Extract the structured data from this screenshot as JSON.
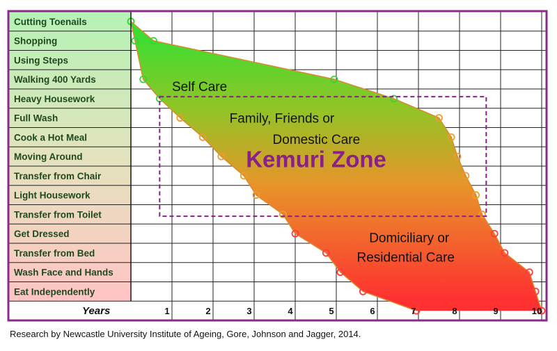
{
  "chart_data": {
    "type": "area",
    "categories": [
      "Cutting Toenails",
      "Shopping",
      "Using Steps",
      "Walking 400 Yards",
      "Heavy Housework",
      "Full Wash",
      "Cook a Hot Meal",
      "Moving Around",
      "Transfer from Chair",
      "Light Housework",
      "Transfer from Toilet",
      "Get Dressed",
      "Transfer from Bed",
      "Wash Face and Hands",
      "Eat Independently"
    ],
    "xlabel": "Years",
    "x_ticks": [
      "1",
      "2",
      "3",
      "4",
      "5",
      "6",
      "7",
      "8",
      "9",
      "10"
    ],
    "xlim": [
      0,
      10.15
    ],
    "grid": true,
    "series": [
      {
        "role": "early boundary",
        "points": [
          {
            "x": 0.0,
            "y": 0.5
          },
          {
            "x": 0.1,
            "y": 1.5
          },
          {
            "x": 0.3,
            "y": 3.5
          },
          {
            "x": 0.7,
            "y": 4.5
          },
          {
            "x": 1.2,
            "y": 5.5
          },
          {
            "x": 1.75,
            "y": 6.5
          },
          {
            "x": 2.2,
            "y": 7.5
          },
          {
            "x": 2.75,
            "y": 8.5
          },
          {
            "x": 3.05,
            "y": 9.5
          },
          {
            "x": 3.7,
            "y": 10.5
          },
          {
            "x": 4.0,
            "y": 11.5
          },
          {
            "x": 4.75,
            "y": 12.5
          },
          {
            "x": 5.1,
            "y": 13.5
          },
          {
            "x": 5.65,
            "y": 14.5
          },
          {
            "x": 6.95,
            "y": 15.5
          }
        ]
      },
      {
        "role": "late boundary",
        "points": [
          {
            "x": 0.0,
            "y": 0.5
          },
          {
            "x": 0.55,
            "y": 1.5
          },
          {
            "x": 4.95,
            "y": 3.5
          },
          {
            "x": 6.4,
            "y": 4.5
          },
          {
            "x": 7.5,
            "y": 5.5
          },
          {
            "x": 7.8,
            "y": 6.5
          },
          {
            "x": 7.95,
            "y": 7.5
          },
          {
            "x": 8.15,
            "y": 8.5
          },
          {
            "x": 8.4,
            "y": 9.5
          },
          {
            "x": 8.55,
            "y": 10.5
          },
          {
            "x": 8.85,
            "y": 11.5
          },
          {
            "x": 9.1,
            "y": 12.5
          },
          {
            "x": 9.7,
            "y": 13.5
          },
          {
            "x": 9.85,
            "y": 14.5
          },
          {
            "x": 10.0,
            "y": 15.5
          }
        ]
      }
    ],
    "annotations": [
      {
        "text": "Self Care",
        "x": 1.0,
        "y": 4.1
      },
      {
        "text": "Family, Friends or",
        "x": 2.4,
        "y": 5.75
      },
      {
        "text": "Domestic Care",
        "x": 3.45,
        "y": 6.85
      },
      {
        "text": "Kemuri Zone",
        "x": 2.8,
        "y": 8.05
      },
      {
        "text": "Domiciliary or",
        "x": 5.8,
        "y": 11.95
      },
      {
        "text": "Residential Care",
        "x": 5.5,
        "y": 12.95
      }
    ],
    "kemuri_zone": {
      "x_range": [
        0.7,
        8.65
      ],
      "y_range": [
        4.4,
        10.6
      ]
    },
    "colors": {
      "border": "#8a2a8a",
      "kemuri": "#8a1f8a",
      "area_top": "#33e033",
      "area_mid": "#e8942a",
      "area_bottom": "#ff3030",
      "label_top": "#b5f2b5",
      "label_bottom": "#ffc4c4"
    }
  },
  "caption": "Research by Newcastle University Institute of Ageing, Gore, Johnson and Jagger, 2014."
}
